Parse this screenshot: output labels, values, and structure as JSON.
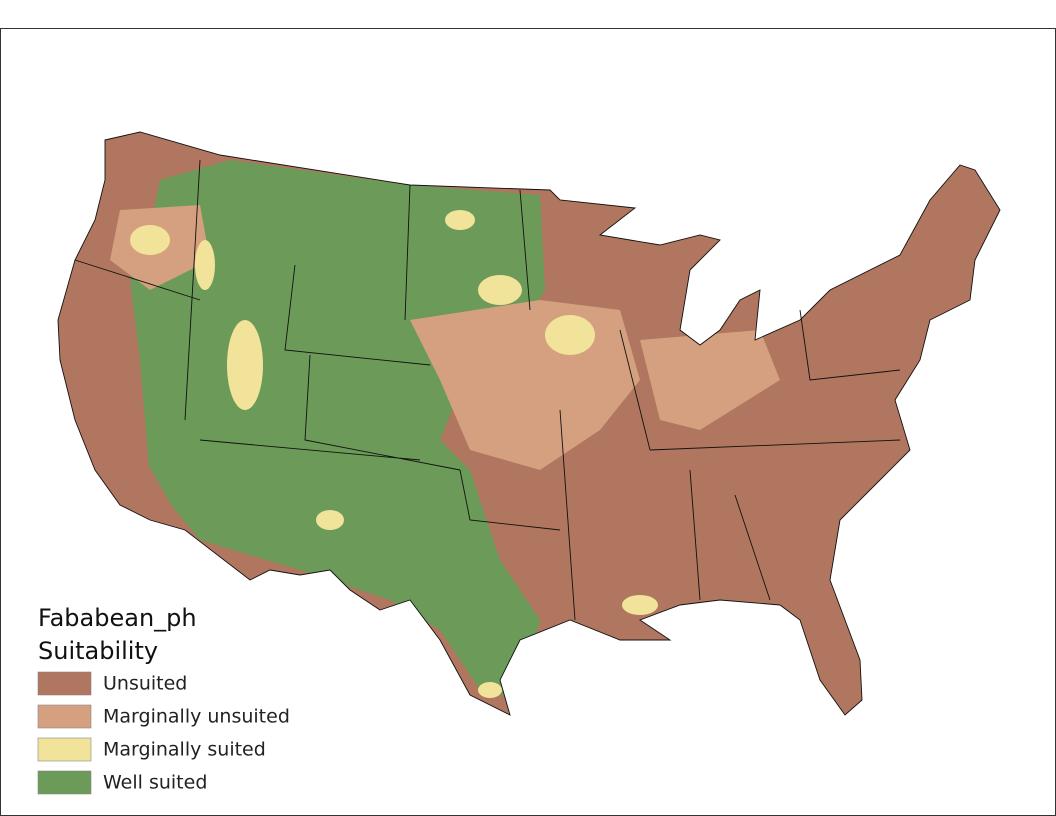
{
  "legend": {
    "title": "Fababean_ph",
    "subtitle": "Suitability",
    "items": [
      {
        "label": "Unsuited",
        "color": "#b0765f"
      },
      {
        "label": "Marginally unsuited",
        "color": "#d4a07f"
      },
      {
        "label": "Marginally suited",
        "color": "#f1e49a"
      },
      {
        "label": "Well suited",
        "color": "#6c9a58"
      }
    ]
  }
}
